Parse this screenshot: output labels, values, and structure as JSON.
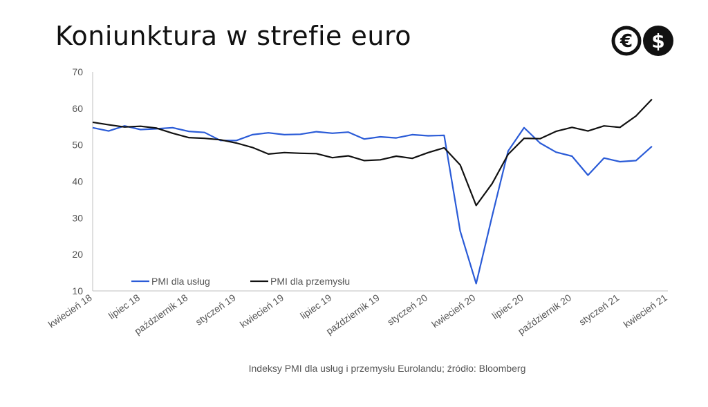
{
  "header": {
    "title": "Koniunktura w strefie euro",
    "logo": {
      "icon": "euro-dollar-logo-icon",
      "color": "#111111"
    }
  },
  "caption": "Indeksy PMI dla usług i przemysłu Eurolandu; źródło: Bloomberg",
  "chart_data": {
    "type": "line",
    "title": "Koniunktura w strefie euro",
    "xlabel": "",
    "ylabel": "",
    "ylim": [
      10,
      70
    ],
    "yticks": [
      10,
      20,
      30,
      40,
      50,
      60,
      70
    ],
    "grid": false,
    "legend_position": "bottom-left",
    "x": [
      "kwiecień 18",
      "maj 18",
      "czerwiec 18",
      "lipiec 18",
      "sierpień 18",
      "wrzesień 18",
      "październik 18",
      "listopad 18",
      "grudzień 18",
      "styczeń 19",
      "luty 19",
      "marzec 19",
      "kwiecień 19",
      "maj 19",
      "czerwiec 19",
      "lipiec 19",
      "sierpień 19",
      "wrzesień 19",
      "październik 19",
      "listopad 19",
      "grudzień 19",
      "styczeń 20",
      "luty 20",
      "marzec 20",
      "kwiecień 20",
      "maj 20",
      "czerwiec 20",
      "lipiec 20",
      "sierpień 20",
      "wrzesień 20",
      "październik 20",
      "listopad 20",
      "grudzień 20",
      "styczeń 21",
      "luty 21",
      "marzec 21",
      "kwiecień 21"
    ],
    "xtick_labels": [
      "kwiecień 18",
      "lipiec 18",
      "październik 18",
      "styczeń 19",
      "kwiecień 19",
      "lipiec 19",
      "październik 19",
      "styczeń 20",
      "kwiecień 20",
      "lipiec 20",
      "październik 20",
      "styczeń 21",
      "kwiecień 21"
    ],
    "series": [
      {
        "name": "PMI dla usług",
        "color": "#2a5bd7",
        "values": [
          54.7,
          53.8,
          55.2,
          54.2,
          54.4,
          54.7,
          53.7,
          53.4,
          51.2,
          51.2,
          52.8,
          53.3,
          52.8,
          52.9,
          53.6,
          53.2,
          53.5,
          51.6,
          52.2,
          51.9,
          52.8,
          52.5,
          52.6,
          26.4,
          12.0,
          30.5,
          48.3,
          54.7,
          50.5,
          48.0,
          46.9,
          41.7,
          46.4,
          45.4,
          45.7,
          49.6,
          null
        ]
      },
      {
        "name": "PMI dla przemysłu",
        "color": "#111111",
        "values": [
          56.2,
          55.5,
          54.9,
          55.1,
          54.6,
          53.2,
          52.0,
          51.8,
          51.4,
          50.5,
          49.3,
          47.5,
          47.9,
          47.7,
          47.6,
          46.5,
          47.0,
          45.7,
          45.9,
          46.9,
          46.3,
          47.9,
          49.2,
          44.5,
          33.4,
          39.4,
          47.4,
          51.8,
          51.7,
          53.7,
          54.8,
          53.8,
          55.2,
          54.8,
          57.9,
          62.5,
          null
        ]
      }
    ]
  }
}
